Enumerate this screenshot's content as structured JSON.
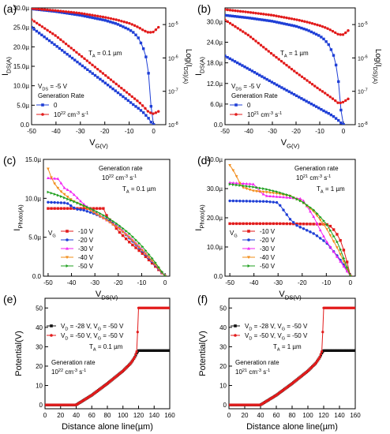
{
  "chart_data": [
    {
      "panel": "(a)",
      "type": "line",
      "ylabel": "I_DS(A)",
      "xlabel": "V_G(V)",
      "y2label": "Log(I_DS)(A)",
      "xlim": [
        -50,
        5
      ],
      "ylim": [
        0,
        30
      ],
      "xticks": [
        "-50",
        "-40",
        "-30",
        "-20",
        "-10",
        "0"
      ],
      "yticks": [
        "0.0",
        "5.0µ",
        "10.0µ",
        "15.0µ",
        "20.0µ",
        "25.0µ",
        "30.0µ"
      ],
      "y2ticks": [
        "10-8",
        "10-7",
        "10-6",
        "10-5"
      ],
      "y2range_log": [
        -8,
        -4.5
      ],
      "annotations": [
        "T_A = 0.1 µm",
        "V_DS = -5 V",
        "Generation Rate"
      ],
      "legend": [
        "0",
        "10^22 cm^-3 s^-1"
      ],
      "legend_position": "bottom-left",
      "series": [
        {
          "name": "0",
          "color": "#1f3fd6",
          "axis": "left",
          "x": [
            -50,
            -40,
            -30,
            -20,
            -15,
            -10,
            -8,
            -6,
            -4,
            -2,
            -1,
            0
          ],
          "y": [
            25,
            20.3,
            15.5,
            10.8,
            8.4,
            6.0,
            5.0,
            4.1,
            3.0,
            1.6,
            0.6,
            0
          ]
        },
        {
          "name": "0",
          "color": "#1f3fd6",
          "axis": "right",
          "x": [
            -50,
            -40,
            -30,
            -20,
            -15,
            -10,
            -8,
            -6,
            -4,
            -3,
            -2,
            -1.5,
            -1,
            0
          ],
          "y": [
            -4.53,
            -4.61,
            -4.72,
            -4.87,
            -4.98,
            -5.15,
            -5.25,
            -5.42,
            -5.75,
            -6.0,
            -6.5,
            -6.9,
            -7.5,
            -8.0
          ]
        },
        {
          "name": "10^22 cm^-3 s^-1",
          "color": "#e21b1b",
          "axis": "left",
          "x": [
            -50,
            -40,
            -30,
            -20,
            -15,
            -10,
            -8,
            -6,
            -4,
            -2,
            0,
            2
          ],
          "y": [
            27,
            22.8,
            17.8,
            12.8,
            10.3,
            7.8,
            6.8,
            5.8,
            4.6,
            3.2,
            2.8,
            3.4
          ]
        },
        {
          "name": "10^22 cm^-3 s^-1",
          "color": "#e21b1b",
          "axis": "right",
          "x": [
            -50,
            -40,
            -30,
            -20,
            -15,
            -10,
            -8,
            -6,
            -4,
            -2,
            0,
            2
          ],
          "y": [
            -4.52,
            -4.58,
            -4.66,
            -4.78,
            -4.86,
            -4.96,
            -5.02,
            -5.09,
            -5.18,
            -5.24,
            -5.22,
            -5.08
          ]
        }
      ]
    },
    {
      "panel": "(b)",
      "type": "line",
      "ylabel": "I_DS(A)",
      "xlabel": "V_G(V)",
      "y2label": "Log(I_DS)(A)",
      "xlim": [
        -50,
        5
      ],
      "ylim": [
        0,
        34
      ],
      "xticks": [
        "-50",
        "-40",
        "-30",
        "-20",
        "-10",
        "0"
      ],
      "yticks": [
        "0.0",
        "6.0µ",
        "12.0µ",
        "18.0µ",
        "24.0µ",
        "30.0µ"
      ],
      "y2ticks": [
        "10-8",
        "10-7",
        "10-6",
        "10-5"
      ],
      "y2range_log": [
        -8,
        -4.5
      ],
      "annotations": [
        "T_A = 1 µm",
        "V_DS = -5 V",
        "Generation Rate"
      ],
      "legend": [
        "0",
        "10^21 cm^-3 s^-1"
      ],
      "legend_position": "bottom-left",
      "series": [
        {
          "name": "0",
          "color": "#1f3fd6",
          "axis": "left",
          "x": [
            -50,
            -40,
            -30,
            -20,
            -15,
            -10,
            -8,
            -6,
            -4,
            -2,
            -1,
            0
          ],
          "y": [
            20,
            16.2,
            12.3,
            8.5,
            6.6,
            4.7,
            3.9,
            3.2,
            2.3,
            1.2,
            0.5,
            0
          ]
        },
        {
          "name": "0",
          "color": "#1f3fd6",
          "axis": "right",
          "x": [
            -50,
            -40,
            -30,
            -20,
            -15,
            -10,
            -8,
            -6,
            -4,
            -3,
            -2,
            -1.5,
            -1,
            0
          ],
          "y": [
            -4.72,
            -4.8,
            -4.9,
            -5.05,
            -5.17,
            -5.34,
            -5.45,
            -5.62,
            -5.95,
            -6.25,
            -6.75,
            -7.15,
            -7.6,
            -8.0
          ]
        },
        {
          "name": "10^21 cm^-3 s^-1",
          "color": "#e21b1b",
          "axis": "left",
          "x": [
            -50,
            -40,
            -30,
            -20,
            -15,
            -10,
            -8,
            -6,
            -4,
            -2,
            0,
            2
          ],
          "y": [
            30.5,
            26,
            20.5,
            15.2,
            12.7,
            10.2,
            9.3,
            8.3,
            7.3,
            6.2,
            6.6,
            7.5
          ]
        },
        {
          "name": "10^21 cm^-3 s^-1",
          "color": "#e21b1b",
          "axis": "right",
          "x": [
            -50,
            -40,
            -30,
            -20,
            -15,
            -10,
            -8,
            -6,
            -4,
            -2,
            0,
            2
          ],
          "y": [
            -4.55,
            -4.63,
            -4.72,
            -4.85,
            -4.93,
            -5.03,
            -5.08,
            -5.14,
            -5.22,
            -5.3,
            -5.3,
            -5.18
          ]
        }
      ]
    },
    {
      "panel": "(c)",
      "type": "line",
      "ylabel": "I_Photo(A)",
      "xlabel": "V_DS(V)",
      "xlim": [
        -52,
        2
      ],
      "ylim": [
        0,
        15
      ],
      "xticks": [
        "-50",
        "-40",
        "-30",
        "-20",
        "-10",
        "0"
      ],
      "yticks": [
        "0.0",
        "5.0µ",
        "10.0µ",
        "15.0µ"
      ],
      "annotations": [
        "Generation rate",
        "10^22 cm^-3 s^-1",
        "T_A = 0.1 µm"
      ],
      "legend_title": "V_G",
      "legend": [
        "-10 V",
        "-20 V",
        "-30 V",
        "-40 V",
        "-50 V"
      ],
      "legend_position": "bottom-left",
      "series": [
        {
          "name": "-10 V",
          "color": "#e21b1b",
          "x": [
            -50,
            -40,
            -30,
            -26,
            -25,
            -20,
            -15,
            -10,
            -5,
            0
          ],
          "y": [
            8.7,
            8.7,
            8.7,
            8.7,
            7.8,
            5.8,
            4.3,
            3.0,
            1.5,
            0
          ]
        },
        {
          "name": "-20 V",
          "color": "#1f3fd6",
          "x": [
            -50,
            -42,
            -38,
            -35,
            -30,
            -25,
            -20,
            -15,
            -10,
            -5,
            0
          ],
          "y": [
            9.5,
            9.4,
            8.6,
            8.5,
            8.0,
            7.3,
            6.3,
            4.8,
            3.3,
            1.7,
            0
          ]
        },
        {
          "name": "-30 V",
          "color": "#f222f2",
          "x": [
            -50,
            -45,
            -44,
            -40,
            -35,
            -30,
            -25,
            -20,
            -15,
            -10,
            -5,
            0
          ],
          "y": [
            12.6,
            12.5,
            11.5,
            10.8,
            9.3,
            8.2,
            7.2,
            6.3,
            5.0,
            3.5,
            1.8,
            0
          ]
        },
        {
          "name": "-40 V",
          "color": "#f28c1a",
          "x": [
            -50,
            -48,
            -45,
            -40,
            -35,
            -30,
            -25,
            -20,
            -15,
            -10,
            -5,
            0
          ],
          "y": [
            13.8,
            12.2,
            11.0,
            9.8,
            9.0,
            8.1,
            7.2,
            6.2,
            4.9,
            3.4,
            1.8,
            0
          ]
        },
        {
          "name": "-50 V",
          "color": "#1fa01f",
          "x": [
            -50,
            -45,
            -40,
            -35,
            -30,
            -25,
            -20,
            -15,
            -10,
            -5,
            0
          ],
          "y": [
            10.8,
            10.3,
            9.7,
            9.1,
            8.4,
            7.6,
            6.6,
            5.4,
            3.9,
            2.1,
            0
          ]
        }
      ]
    },
    {
      "panel": "(d)",
      "type": "line",
      "ylabel": "I_Photo(A)",
      "xlabel": "V_DS(V)",
      "xlim": [
        -52,
        2
      ],
      "ylim": [
        0,
        40
      ],
      "xticks": [
        "-50",
        "-40",
        "-30",
        "-20",
        "-10",
        "0"
      ],
      "yticks": [
        "0.0",
        "10.0µ",
        "20.0µ",
        "30.0µ",
        "40.0µ"
      ],
      "annotations": [
        "Generation rate",
        "10^21 cm^-3 s^-1",
        "T_A = 1 µm"
      ],
      "legend_title": "V_G",
      "legend": [
        "-10 V",
        "-20 V",
        "-30 V",
        "-40 V",
        "-50 V"
      ],
      "legend_position": "bottom-left",
      "series": [
        {
          "name": "-10 V",
          "color": "#e21b1b",
          "x": [
            -50,
            -30,
            -10,
            -8,
            -6,
            -4,
            -2,
            0
          ],
          "y": [
            18,
            18,
            17.8,
            17,
            15,
            12,
            7,
            0
          ]
        },
        {
          "name": "-20 V",
          "color": "#1f3fd6",
          "x": [
            -50,
            -35,
            -30,
            -25,
            -22,
            -20,
            -15,
            -10,
            -5,
            -2,
            0
          ],
          "y": [
            25.8,
            25.6,
            25.2,
            19.5,
            17.2,
            16.5,
            14.5,
            11.5,
            6.5,
            3,
            0
          ]
        },
        {
          "name": "-30 V",
          "color": "#f222f2",
          "x": [
            -50,
            -40,
            -37,
            -35,
            -30,
            -20,
            -15,
            -13,
            -10,
            -5,
            0
          ],
          "y": [
            32,
            31.5,
            28.5,
            27.5,
            27.2,
            26.5,
            20,
            16.5,
            12,
            6,
            0
          ]
        },
        {
          "name": "-40 V",
          "color": "#f28c1a",
          "x": [
            -50,
            -48,
            -45,
            -40,
            -35,
            -30,
            -25,
            -20,
            -15,
            -10,
            -5,
            0
          ],
          "y": [
            38,
            35.5,
            30.5,
            29.2,
            28.8,
            28.3,
            27.5,
            25.5,
            22,
            16.5,
            9,
            0
          ]
        },
        {
          "name": "-50 V",
          "color": "#1fa01f",
          "x": [
            -50,
            -45,
            -40,
            -35,
            -30,
            -25,
            -20,
            -15,
            -10,
            -5,
            0
          ],
          "y": [
            31.5,
            31,
            30.5,
            29.8,
            28.8,
            27.5,
            25.5,
            22.5,
            18,
            11,
            0
          ]
        }
      ]
    },
    {
      "panel": "(e)",
      "type": "scatter",
      "ylabel": "Potential(V)",
      "xlabel": "Distance alone line(µm)",
      "xlim": [
        0,
        160
      ],
      "ylim": [
        -2,
        55
      ],
      "xticks": [
        "0",
        "20",
        "40",
        "60",
        "80",
        "100",
        "120",
        "140",
        "160"
      ],
      "yticks": [
        "0",
        "10",
        "20",
        "30",
        "40",
        "50"
      ],
      "annotations": [
        "T_A = 0.1 µm",
        "Generation rate",
        "10^22 cm^-3 s^-1"
      ],
      "legend": [
        "V_D = -28 V, V_G = -50 V",
        "V_D = -50 V, V_G = -50 V"
      ],
      "legend_position": "top-left",
      "series": [
        {
          "name": "V_D = -28 V, V_G = -50 V",
          "color": "#111111",
          "x": [
            0,
            40,
            60,
            80,
            100,
            110,
            115,
            118,
            120,
            140,
            160
          ],
          "y": [
            0,
            0,
            5,
            11,
            17.5,
            21.5,
            24.5,
            27,
            28,
            28,
            28
          ]
        },
        {
          "name": "V_D = -50 V, V_G = -50 V",
          "color": "#e21b1b",
          "x": [
            0,
            40,
            60,
            80,
            100,
            110,
            115,
            118,
            119,
            120,
            140,
            160
          ],
          "y": [
            0,
            0,
            5,
            11,
            17.5,
            21.5,
            24.5,
            28,
            40,
            50,
            50,
            50
          ]
        }
      ]
    },
    {
      "panel": "(f)",
      "type": "scatter",
      "ylabel": "Potential(V)",
      "xlabel": "Distance alone line(µm)",
      "xlim": [
        0,
        160
      ],
      "ylim": [
        -2,
        55
      ],
      "xticks": [
        "0",
        "20",
        "40",
        "60",
        "80",
        "100",
        "120",
        "140",
        "160"
      ],
      "yticks": [
        "0",
        "10",
        "20",
        "30",
        "40",
        "50"
      ],
      "annotations": [
        "T_A = 1 µm",
        "Generation rate",
        "10^21 cm^-3 s^-1"
      ],
      "legend": [
        "V_D = -28 V, V_G = -50 V",
        "V_D = -50 V, V_G = -50 V"
      ],
      "legend_position": "top-left",
      "series": [
        {
          "name": "V_D = -28 V, V_G = -50 V",
          "color": "#111111",
          "x": [
            0,
            40,
            60,
            80,
            100,
            110,
            115,
            118,
            120,
            140,
            160
          ],
          "y": [
            0,
            0,
            5,
            11,
            17.5,
            21.5,
            24.5,
            27,
            28,
            28,
            28
          ]
        },
        {
          "name": "V_D = -50 V, V_G = -50 V",
          "color": "#e21b1b",
          "x": [
            0,
            40,
            60,
            80,
            100,
            110,
            115,
            118,
            119,
            120,
            140,
            160
          ],
          "y": [
            0,
            0,
            5,
            11,
            17.5,
            21.5,
            24.5,
            28,
            40,
            50,
            50,
            50
          ]
        }
      ]
    }
  ]
}
